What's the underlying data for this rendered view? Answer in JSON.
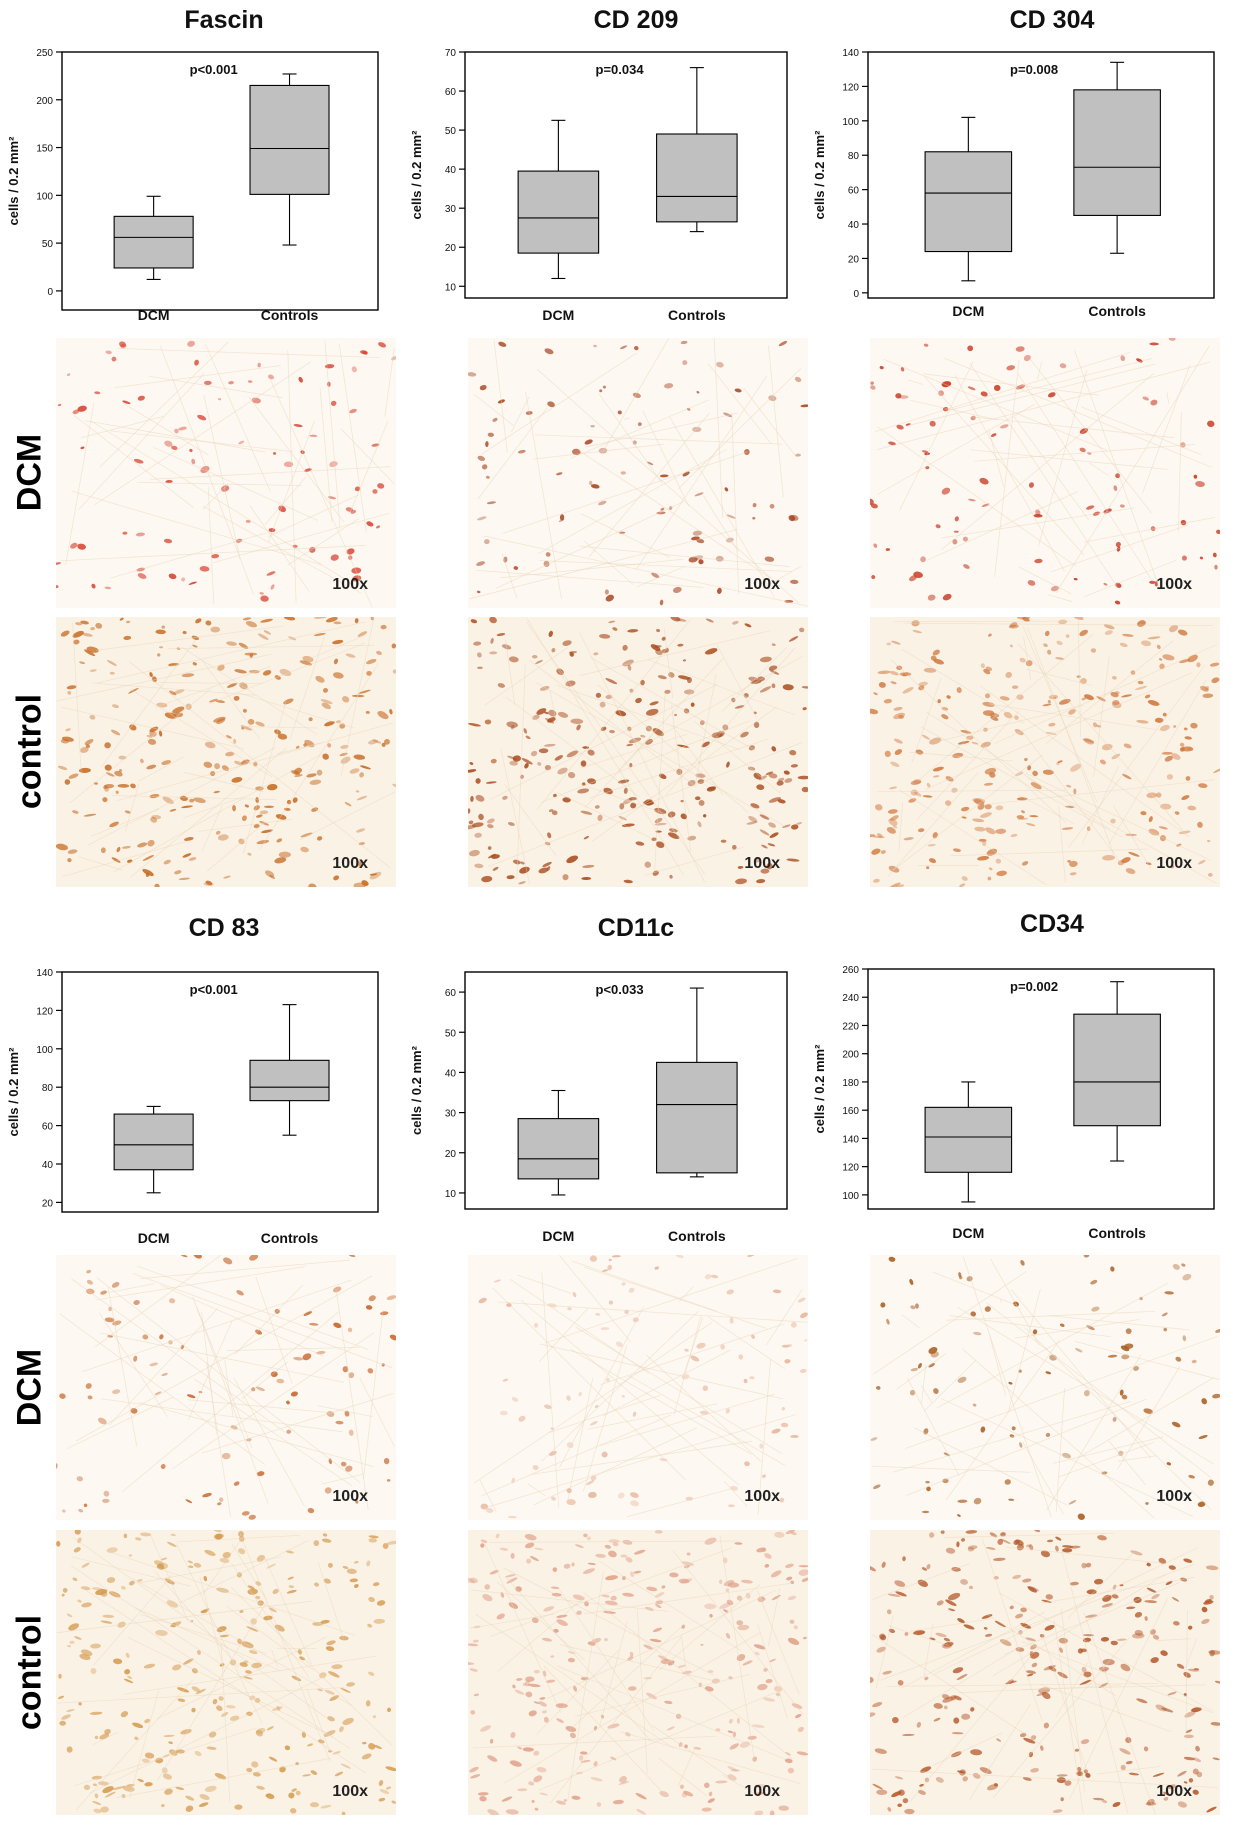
{
  "ylabel": "cells / 0.2 mm²",
  "magnification": "100x",
  "row_labels": {
    "dcm": "DCM",
    "control": "control"
  },
  "stain_colors": {
    "Fascin": {
      "dcm": "#d6402e",
      "control": "#c66a22"
    },
    "CD 209": {
      "dcm": "#a8421e",
      "control": "#a84a1c"
    },
    "CD 304": {
      "dcm": "#c8321c",
      "control": "#d0783e"
    },
    "CD 83": {
      "dcm": "#c6652a",
      "control": "#d49a4e"
    },
    "CD11c": {
      "dcm": "#e6b49a",
      "control": "#e0a088"
    },
    "CD34": {
      "dcm": "#a65a1c",
      "control": "#b4582a"
    }
  },
  "chart_data": [
    {
      "type": "box",
      "title": "Fascin",
      "categories": [
        "DCM",
        "Controls"
      ],
      "ylabel": "cells / 0.2 mm²",
      "ylim": [
        -20,
        250
      ],
      "yticks": [
        0,
        50,
        100,
        150,
        200,
        250
      ],
      "annotation": "p<0.001",
      "boxes": [
        {
          "min": 12,
          "q1": 24,
          "median": 56,
          "q3": 78,
          "max": 99
        },
        {
          "min": 48,
          "q1": 101,
          "median": 149,
          "q3": 215,
          "max": 227
        }
      ]
    },
    {
      "type": "box",
      "title": "CD 209",
      "categories": [
        "DCM",
        "Controls"
      ],
      "ylabel": "cells / 0.2 mm²",
      "ylim": [
        7,
        70
      ],
      "yticks": [
        10,
        20,
        30,
        40,
        50,
        60,
        70
      ],
      "annotation": "p=0.034",
      "boxes": [
        {
          "min": 12,
          "q1": 18.5,
          "median": 27.5,
          "q3": 39.5,
          "max": 52.5
        },
        {
          "min": 24,
          "q1": 26.5,
          "median": 33,
          "q3": 49,
          "max": 66
        }
      ]
    },
    {
      "type": "box",
      "title": "CD 304",
      "categories": [
        "DCM",
        "Controls"
      ],
      "ylabel": "cells / 0.2 mm²",
      "ylim": [
        -3,
        140
      ],
      "yticks": [
        0,
        20,
        40,
        60,
        80,
        100,
        120,
        140
      ],
      "annotation": "p=0.008",
      "boxes": [
        {
          "min": 7,
          "q1": 24,
          "median": 58,
          "q3": 82,
          "max": 102
        },
        {
          "min": 23,
          "q1": 45,
          "median": 73,
          "q3": 118,
          "max": 134
        }
      ]
    },
    {
      "type": "box",
      "title": "CD 83",
      "categories": [
        "DCM",
        "Controls"
      ],
      "ylabel": "cells / 0.2 mm²",
      "ylim": [
        15,
        140
      ],
      "yticks": [
        20,
        40,
        60,
        80,
        100,
        120,
        140
      ],
      "annotation": "p<0.001",
      "boxes": [
        {
          "min": 25,
          "q1": 37,
          "median": 50,
          "q3": 66,
          "max": 70
        },
        {
          "min": 55,
          "q1": 73,
          "median": 80,
          "q3": 94,
          "max": 123
        }
      ]
    },
    {
      "type": "box",
      "title": "CD11c",
      "categories": [
        "DCM",
        "Controls"
      ],
      "ylabel": "cells / 0.2 mm²",
      "ylim": [
        6,
        65
      ],
      "yticks": [
        10,
        20,
        30,
        40,
        50,
        60
      ],
      "annotation": "p<0.033",
      "boxes": [
        {
          "min": 9.5,
          "q1": 13.5,
          "median": 18.5,
          "q3": 28.5,
          "max": 35.5
        },
        {
          "min": 14,
          "q1": 15,
          "median": 32,
          "q3": 42.5,
          "max": 61
        }
      ]
    },
    {
      "type": "box",
      "title": "CD34",
      "categories": [
        "DCM",
        "Controls"
      ],
      "ylabel": "cells / 0.2 mm²",
      "ylim": [
        90,
        260
      ],
      "yticks": [
        100,
        120,
        140,
        160,
        180,
        200,
        220,
        240,
        260
      ],
      "annotation": "p=0.002",
      "boxes": [
        {
          "min": 95,
          "q1": 116,
          "median": 141,
          "q3": 162,
          "max": 180
        },
        {
          "min": 124,
          "q1": 149,
          "median": 180,
          "q3": 228,
          "max": 251
        }
      ]
    }
  ]
}
